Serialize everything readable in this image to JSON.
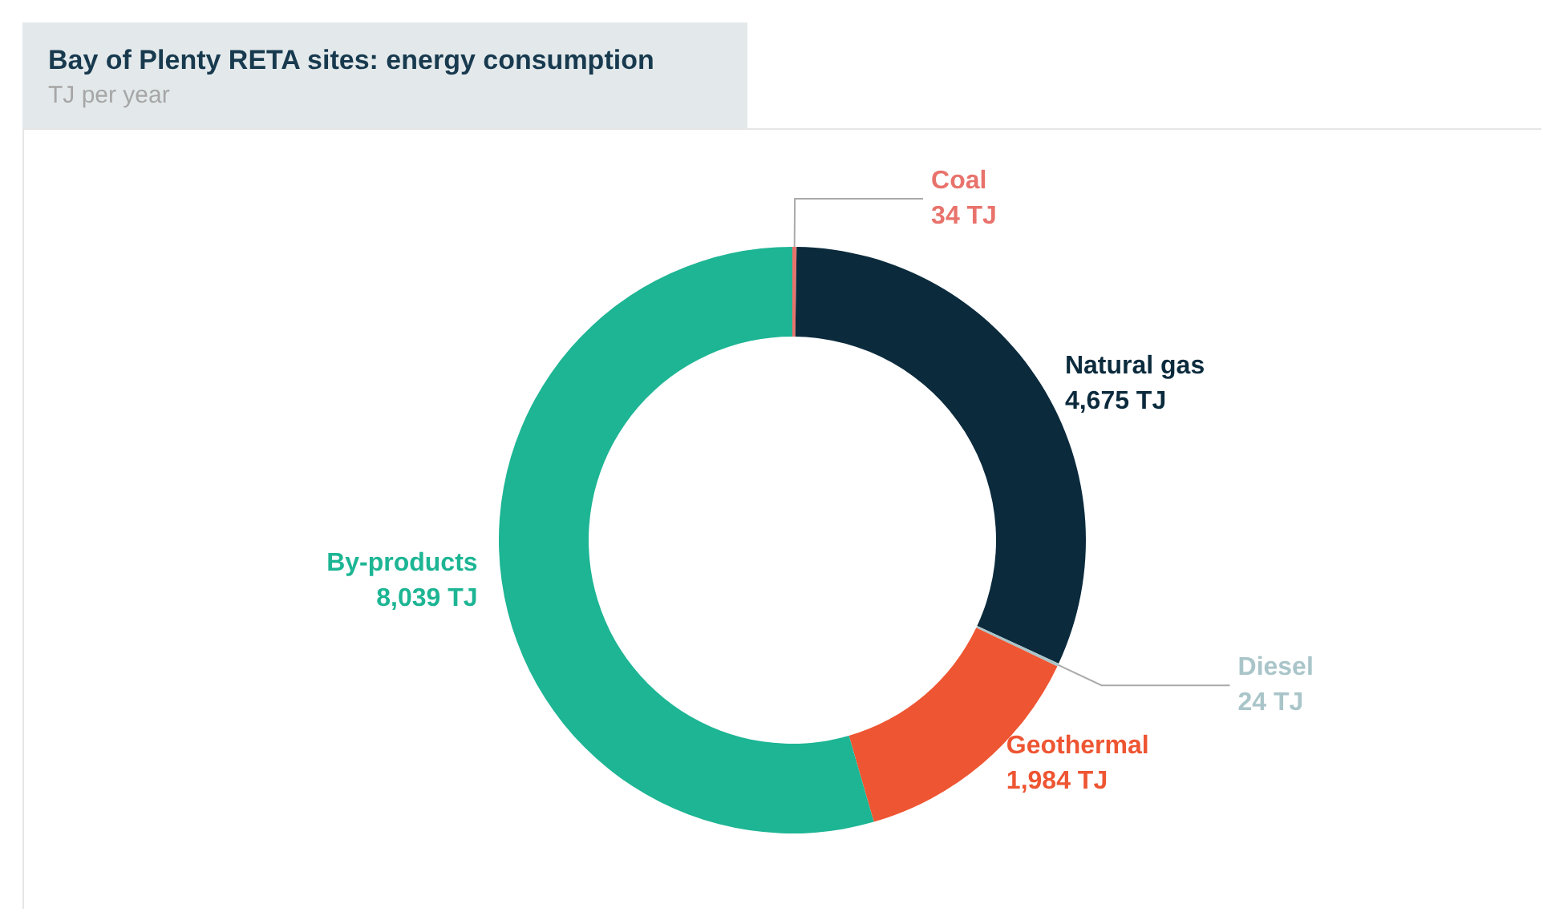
{
  "chart_data": {
    "type": "donut",
    "title": "Bay of Plenty RETA sites: energy consumption",
    "subtitle": "TJ per year",
    "categories": [
      "Coal",
      "Natural gas",
      "Diesel",
      "Geothermal",
      "By-products"
    ],
    "values": [
      34,
      4675,
      24,
      1984,
      8039
    ],
    "value_labels": [
      "34 TJ",
      "4,675 TJ",
      "24 TJ",
      "1,984 TJ",
      "8,039 TJ"
    ],
    "colors": [
      "#e8736c",
      "#0b2b3d",
      "#a9c5c9",
      "#ee5532",
      "#1db594"
    ],
    "legend": false
  }
}
